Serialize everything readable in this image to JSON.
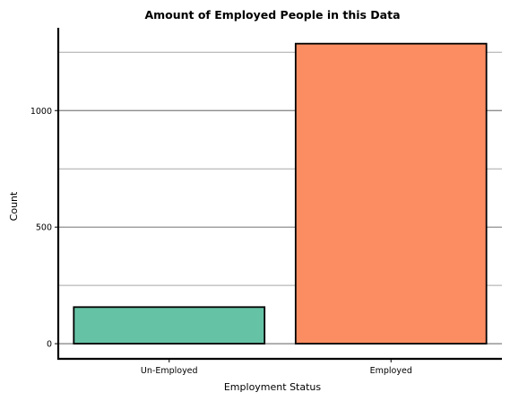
{
  "chart_data": {
    "type": "bar",
    "title": "Amount of Employed People in this Data",
    "xlabel": "Employment Status",
    "ylabel": "Count",
    "categories": [
      "Un-Employed",
      "Employed"
    ],
    "values": [
      157,
      1287
    ],
    "colors": [
      "#66c2a5",
      "#fc8d62"
    ],
    "ylim": [
      -65,
      1355
    ],
    "yticks": [
      0,
      500,
      1000
    ],
    "grid": true,
    "grid_major_color": "#808080",
    "grid_minor_color": "#a8a8a8",
    "grid_minor_values": [
      250,
      750,
      1250
    ]
  }
}
